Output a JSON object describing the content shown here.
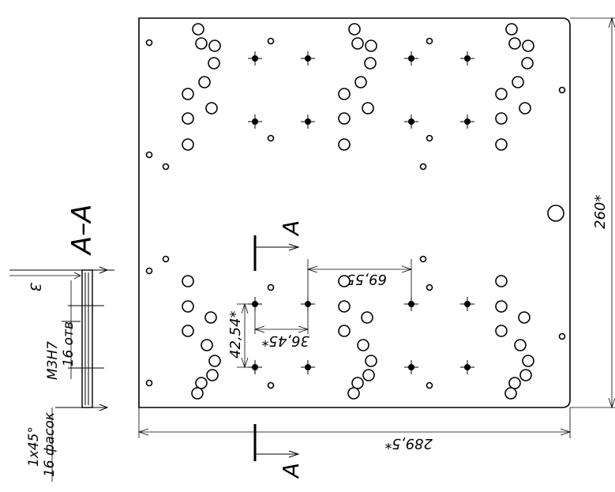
{
  "section": {
    "label": "A–A",
    "dim_top": "3",
    "thread": "M3H7",
    "thread_count": "16 отв",
    "chamfer": "1x45°",
    "chamfer_count": "16 фасок"
  },
  "plate": {
    "height_dim": "260*",
    "width_dim": "289,5*",
    "pitch_x_wide": "69,55*",
    "pitch_x_small": "36,45*",
    "pitch_y": "42,54*"
  },
  "section_marks": {
    "top_letter": "A",
    "bottom_letter": "A"
  }
}
